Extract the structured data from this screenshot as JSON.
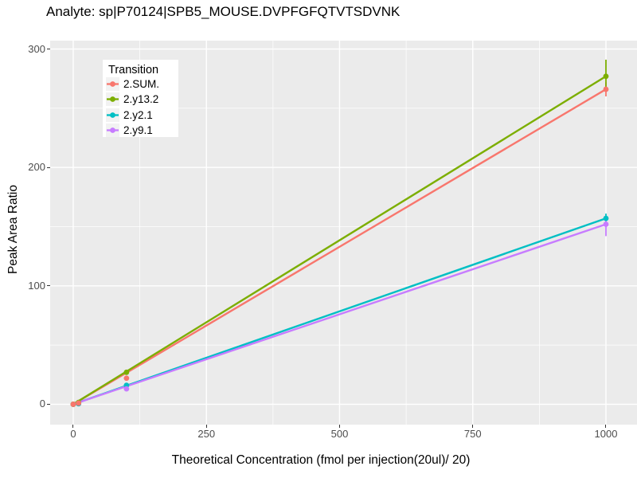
{
  "colors": {
    "panel_background": "#EBEBEB",
    "grid": "#FFFFFF",
    "tick_text": "#4D4D4D",
    "tick_mark": "#333333",
    "legend_key_background": "#F2F2F2"
  },
  "chart_data": {
    "type": "line",
    "title": "Analyte: sp|P70124|SPB5_MOUSE.DVPFGFQTVTSDVNK",
    "xlabel": "Theoretical Concentration (fmol per injection(20ul)/ 20)",
    "ylabel": "Peak Area Ratio",
    "legend_title": "Transition",
    "legend_position": "top-left-inside",
    "grid": true,
    "x_ticks": [
      0,
      250,
      500,
      750,
      1000
    ],
    "x_tick_labels": [
      "0",
      "250",
      "500",
      "750",
      "1000"
    ],
    "y_ticks": [
      0,
      100,
      200,
      300
    ],
    "y_tick_labels": [
      "0",
      "100",
      "200",
      "300"
    ],
    "x_minor_ticks": [
      125,
      375,
      625,
      875
    ],
    "y_minor_ticks": [
      50,
      150,
      250
    ],
    "x_range": [
      -43.3,
      1058.3
    ],
    "y_range": [
      -17.2,
      307.1
    ],
    "x": [
      0,
      10,
      100,
      1000
    ],
    "series": [
      {
        "name": "2.SUM.",
        "color": "#F8766D",
        "values": [
          0,
          1,
          22,
          266
        ],
        "fit_line": [
          [
            0,
            0
          ],
          [
            1000,
            266
          ]
        ],
        "errorbar": {
          "x": 1000,
          "low": 260,
          "high": 272
        }
      },
      {
        "name": "2.y13.2",
        "color": "#7CAE00",
        "values": [
          0,
          1.5,
          27,
          277
        ],
        "fit_line": [
          [
            0,
            0
          ],
          [
            1000,
            277
          ]
        ],
        "errorbar": {
          "x": 1000,
          "low": 267,
          "high": 291
        }
      },
      {
        "name": "2.y2.1",
        "color": "#00BFC4",
        "values": [
          0,
          0.5,
          16,
          157
        ],
        "fit_line": [
          [
            0,
            0
          ],
          [
            1000,
            157
          ]
        ],
        "errorbar": {
          "x": 1000,
          "low": 153,
          "high": 161
        }
      },
      {
        "name": "2.y9.1",
        "color": "#C77CFF",
        "values": [
          0,
          0.5,
          13,
          152
        ],
        "fit_line": [
          [
            0,
            0
          ],
          [
            1000,
            152
          ]
        ],
        "errorbar": {
          "x": 1000,
          "low": 142,
          "high": 156
        }
      }
    ]
  }
}
